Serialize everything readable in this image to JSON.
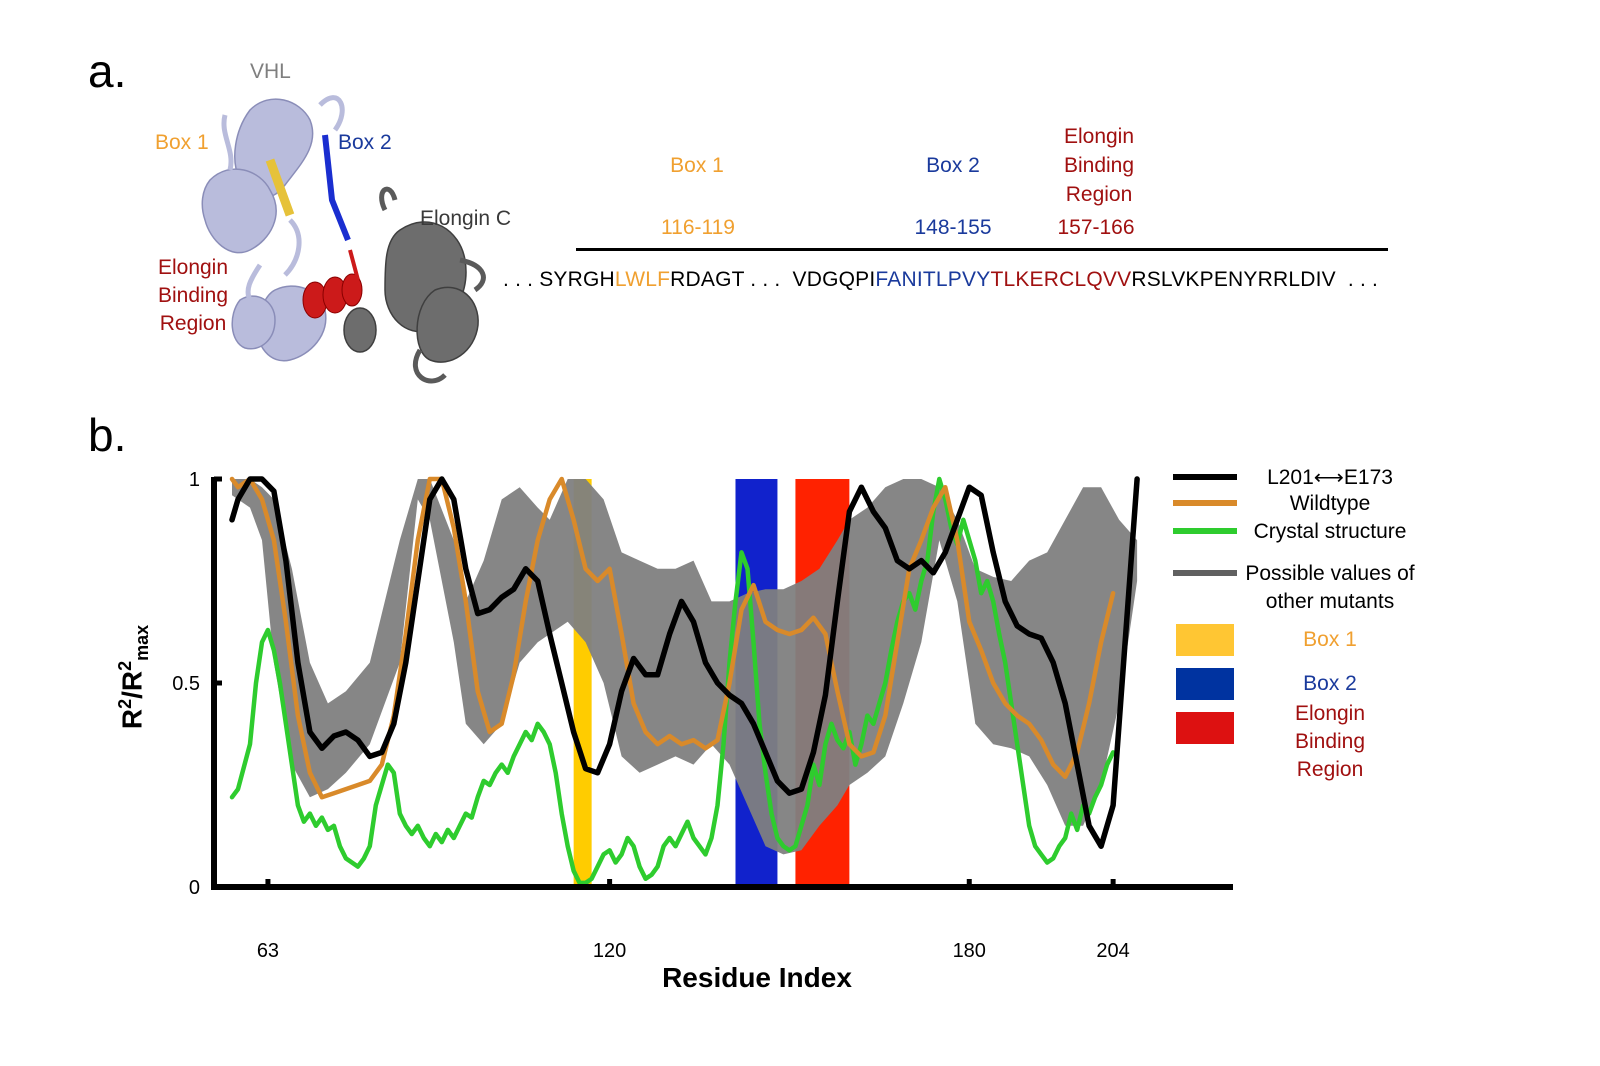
{
  "panel_a": {
    "letter": "a.",
    "structure_labels": {
      "vhl": "VHL",
      "box1": "Box 1",
      "box2": "Box 2",
      "elongin_c": "Elongin C",
      "elongin_binding": [
        "Elongin",
        "Binding",
        "Region"
      ]
    },
    "regions": [
      {
        "name_lines": [
          "Box 1"
        ],
        "range": "116-119",
        "color": "#f0a030"
      },
      {
        "name_lines": [
          "Box 2"
        ],
        "range": "148-155",
        "color": "#1a3a9c"
      },
      {
        "name_lines": [
          "Elongin",
          "Binding",
          "Region"
        ],
        "range": "157-166",
        "color": "#a01010"
      }
    ],
    "sequence": [
      {
        "text": ". . . SYRGH",
        "color": "#000000"
      },
      {
        "text": "LWLF",
        "color": "#f0a030"
      },
      {
        "text": "RDAGT . . .  VDGQPI",
        "color": "#000000"
      },
      {
        "text": "FANITLPV",
        "color": "#1a3a9c"
      },
      {
        "text": "Y",
        "color": "#000000"
      },
      {
        "text": "TLKERCLQVV",
        "color": "#a01010"
      },
      {
        "text": "RSLVKPENYRRLDIV  . . .",
        "color": "#000000"
      }
    ]
  },
  "panel_b": {
    "letter": "b."
  },
  "chart_data": {
    "type": "line",
    "xlabel": "Residue Index",
    "ylabel": "R²/R²max",
    "ylabel_parts": {
      "base": "R",
      "sup1": "2",
      "slash": "/R",
      "sup2": "2",
      "sub": "max"
    },
    "xlim": [
      54,
      224
    ],
    "ylim": [
      0,
      1
    ],
    "x_ticks": [
      63,
      120,
      180,
      204
    ],
    "y_ticks": [
      {
        "value": 0,
        "label": "0"
      },
      {
        "value": 0.5,
        "label": "0.5"
      },
      {
        "value": 1,
        "label": "1"
      }
    ],
    "grid": false,
    "legend_position": "right",
    "highlight_regions": [
      {
        "name": "Box 1",
        "from": 114,
        "to": 117,
        "color": "#ffcc00"
      },
      {
        "name": "Box 2",
        "from": 141,
        "to": 148,
        "color": "#1122cc"
      },
      {
        "name": "Elongin Binding Region",
        "from": 151,
        "to": 160,
        "color": "#ff2200"
      }
    ],
    "band": {
      "name": "Possible values of other mutants",
      "color": "#808080",
      "x": [
        57,
        60,
        62,
        64,
        67,
        70,
        73,
        76,
        80,
        85,
        88,
        90,
        94,
        96,
        99,
        102,
        105,
        108,
        110,
        113,
        116,
        119,
        122,
        125,
        128,
        131,
        134,
        137,
        140,
        143,
        146,
        149,
        152,
        155,
        158,
        160,
        163,
        166,
        169,
        172,
        175,
        178,
        181,
        184,
        187,
        190,
        193,
        196,
        199,
        202,
        205,
        208
      ],
      "upper": [
        1.0,
        1.0,
        0.98,
        0.95,
        0.78,
        0.55,
        0.45,
        0.48,
        0.55,
        0.85,
        1.0,
        1.0,
        0.85,
        0.7,
        0.8,
        0.95,
        0.98,
        0.93,
        0.9,
        1.0,
        1.0,
        0.95,
        0.82,
        0.8,
        0.78,
        0.78,
        0.8,
        0.7,
        0.7,
        0.72,
        0.73,
        0.73,
        0.75,
        0.78,
        0.85,
        0.9,
        0.93,
        0.98,
        1.0,
        1.0,
        0.98,
        0.9,
        0.78,
        0.76,
        0.75,
        0.8,
        0.82,
        0.9,
        0.98,
        0.98,
        0.9,
        0.85
      ],
      "lower": [
        0.96,
        0.93,
        0.85,
        0.55,
        0.3,
        0.22,
        0.24,
        0.28,
        0.35,
        0.55,
        0.95,
        0.9,
        0.6,
        0.4,
        0.35,
        0.4,
        0.55,
        0.6,
        0.62,
        0.65,
        0.6,
        0.5,
        0.32,
        0.28,
        0.3,
        0.32,
        0.3,
        0.35,
        0.3,
        0.2,
        0.1,
        0.08,
        0.09,
        0.15,
        0.2,
        0.25,
        0.28,
        0.32,
        0.45,
        0.6,
        0.85,
        0.7,
        0.4,
        0.35,
        0.34,
        0.32,
        0.25,
        0.15,
        0.15,
        0.25,
        0.45,
        0.75
      ]
    },
    "series": [
      {
        "name": "L201⟷E173",
        "color": "#000000",
        "x": [
          57,
          58,
          60,
          62,
          64,
          66,
          68,
          70,
          72,
          74,
          76,
          78,
          80,
          82,
          84,
          86,
          88,
          90,
          92,
          94,
          96,
          98,
          100,
          102,
          104,
          106,
          108,
          110,
          112,
          114,
          116,
          118,
          120,
          122,
          124,
          126,
          128,
          130,
          132,
          134,
          136,
          138,
          140,
          142,
          144,
          146,
          148,
          150,
          152,
          154,
          156,
          158,
          160,
          162,
          164,
          166,
          168,
          170,
          172,
          174,
          176,
          178,
          180,
          182,
          184,
          186,
          188,
          190,
          192,
          194,
          196,
          198,
          200,
          202,
          204,
          206,
          208
        ],
        "y": [
          0.9,
          0.95,
          1.0,
          1.0,
          0.97,
          0.8,
          0.55,
          0.38,
          0.34,
          0.37,
          0.38,
          0.36,
          0.32,
          0.33,
          0.4,
          0.55,
          0.75,
          0.95,
          1.0,
          0.95,
          0.78,
          0.67,
          0.68,
          0.71,
          0.73,
          0.78,
          0.75,
          0.62,
          0.5,
          0.38,
          0.29,
          0.28,
          0.35,
          0.48,
          0.56,
          0.52,
          0.52,
          0.62,
          0.7,
          0.65,
          0.55,
          0.5,
          0.47,
          0.45,
          0.4,
          0.33,
          0.26,
          0.23,
          0.24,
          0.33,
          0.47,
          0.7,
          0.92,
          0.98,
          0.92,
          0.88,
          0.8,
          0.78,
          0.8,
          0.77,
          0.82,
          0.9,
          0.98,
          0.96,
          0.82,
          0.7,
          0.64,
          0.62,
          0.61,
          0.55,
          0.45,
          0.3,
          0.15,
          0.1,
          0.2,
          0.6,
          1.0
        ]
      },
      {
        "name": "Wildtype",
        "color": "#d98a2a",
        "x": [
          57,
          58,
          60,
          62,
          64,
          66,
          68,
          70,
          72,
          74,
          76,
          78,
          80,
          82,
          84,
          86,
          88,
          90,
          92,
          94,
          96,
          98,
          100,
          102,
          104,
          106,
          108,
          110,
          112,
          114,
          116,
          118,
          120,
          122,
          124,
          126,
          128,
          130,
          132,
          134,
          136,
          138,
          140,
          142,
          144,
          146,
          148,
          150,
          152,
          154,
          156,
          158,
          160,
          162,
          164,
          166,
          168,
          170,
          172,
          174,
          176,
          178,
          180,
          182,
          184,
          186,
          188,
          190,
          192,
          194,
          196,
          198,
          200,
          202,
          204
        ],
        "y": [
          1.0,
          0.98,
          1.0,
          0.95,
          0.85,
          0.65,
          0.42,
          0.28,
          0.22,
          0.23,
          0.24,
          0.25,
          0.26,
          0.3,
          0.42,
          0.62,
          0.85,
          1.0,
          1.0,
          0.88,
          0.7,
          0.48,
          0.38,
          0.4,
          0.52,
          0.7,
          0.85,
          0.95,
          1.0,
          0.9,
          0.78,
          0.75,
          0.78,
          0.62,
          0.45,
          0.38,
          0.35,
          0.37,
          0.35,
          0.36,
          0.34,
          0.36,
          0.5,
          0.68,
          0.74,
          0.65,
          0.63,
          0.62,
          0.63,
          0.66,
          0.62,
          0.48,
          0.35,
          0.32,
          0.33,
          0.42,
          0.6,
          0.78,
          0.85,
          0.93,
          0.98,
          0.85,
          0.65,
          0.58,
          0.5,
          0.45,
          0.42,
          0.4,
          0.36,
          0.3,
          0.27,
          0.33,
          0.45,
          0.6,
          0.72
        ]
      },
      {
        "name": "Crystal structure",
        "color": "#2ecc2e",
        "x": [
          57,
          58,
          60,
          61,
          62,
          63,
          64,
          65,
          66,
          67,
          68,
          69,
          70,
          71,
          72,
          73,
          74,
          75,
          76,
          77,
          78,
          79,
          80,
          81,
          82,
          83,
          84,
          85,
          86,
          87,
          88,
          89,
          90,
          91,
          92,
          93,
          94,
          95,
          96,
          97,
          98,
          99,
          100,
          101,
          102,
          103,
          104,
          105,
          106,
          107,
          108,
          109,
          110,
          111,
          112,
          113,
          114,
          115,
          116,
          117,
          118,
          119,
          120,
          121,
          122,
          123,
          124,
          125,
          126,
          127,
          128,
          129,
          130,
          131,
          132,
          133,
          134,
          135,
          136,
          137,
          138,
          139,
          140,
          141,
          142,
          143,
          144,
          145,
          146,
          147,
          148,
          149,
          150,
          151,
          152,
          153,
          154,
          155,
          156,
          157,
          158,
          159,
          160,
          161,
          162,
          163,
          164,
          165,
          166,
          167,
          168,
          169,
          170,
          171,
          172,
          173,
          174,
          175,
          176,
          177,
          178,
          179,
          180,
          181,
          182,
          183,
          184,
          185,
          186,
          187,
          188,
          189,
          190,
          191,
          192,
          193,
          194,
          195,
          196,
          197,
          198,
          199,
          200,
          201,
          202,
          203,
          204
        ],
        "y": [
          0.22,
          0.24,
          0.35,
          0.5,
          0.6,
          0.63,
          0.58,
          0.5,
          0.4,
          0.3,
          0.2,
          0.16,
          0.18,
          0.15,
          0.17,
          0.14,
          0.15,
          0.1,
          0.07,
          0.06,
          0.05,
          0.07,
          0.1,
          0.2,
          0.25,
          0.3,
          0.28,
          0.18,
          0.15,
          0.13,
          0.15,
          0.12,
          0.1,
          0.13,
          0.11,
          0.14,
          0.12,
          0.15,
          0.18,
          0.17,
          0.22,
          0.26,
          0.25,
          0.28,
          0.3,
          0.28,
          0.32,
          0.35,
          0.38,
          0.36,
          0.4,
          0.38,
          0.35,
          0.28,
          0.18,
          0.1,
          0.04,
          0.01,
          0.01,
          0.02,
          0.05,
          0.08,
          0.09,
          0.06,
          0.08,
          0.12,
          0.1,
          0.05,
          0.02,
          0.03,
          0.05,
          0.1,
          0.12,
          0.1,
          0.13,
          0.16,
          0.12,
          0.1,
          0.08,
          0.12,
          0.2,
          0.35,
          0.55,
          0.7,
          0.82,
          0.78,
          0.6,
          0.4,
          0.28,
          0.18,
          0.12,
          0.1,
          0.09,
          0.1,
          0.15,
          0.2,
          0.3,
          0.25,
          0.35,
          0.4,
          0.36,
          0.34,
          0.38,
          0.3,
          0.35,
          0.42,
          0.4,
          0.45,
          0.5,
          0.58,
          0.65,
          0.7,
          0.72,
          0.68,
          0.75,
          0.8,
          0.92,
          1.0,
          0.95,
          0.88,
          0.84,
          0.9,
          0.85,
          0.8,
          0.72,
          0.75,
          0.7,
          0.62,
          0.55,
          0.45,
          0.35,
          0.25,
          0.15,
          0.1,
          0.08,
          0.06,
          0.07,
          0.1,
          0.12,
          0.18,
          0.14,
          0.2,
          0.18,
          0.22,
          0.25,
          0.3,
          0.33
        ]
      }
    ],
    "legend": [
      {
        "kind": "line",
        "color": "#000000",
        "lines": [
          "L201⟷E173"
        ],
        "text_color": "#000000"
      },
      {
        "kind": "line",
        "color": "#d98a2a",
        "lines": [
          "Wildtype"
        ],
        "text_color": "#000000"
      },
      {
        "kind": "line",
        "color": "#2ecc2e",
        "lines": [
          "Crystal structure"
        ],
        "text_color": "#000000"
      },
      {
        "kind": "line",
        "color": "#606060",
        "lines": [
          "Possible values of",
          "other mutants"
        ],
        "text_color": "#000000"
      },
      {
        "kind": "box",
        "color": "#ffc633",
        "lines": [
          "Box 1"
        ],
        "text_color": "#f0a030"
      },
      {
        "kind": "box",
        "color": "#0033a0",
        "lines": [
          "Box 2"
        ],
        "text_color": "#1a3a9c"
      },
      {
        "kind": "box",
        "color": "#dd1111",
        "lines": [
          "Elongin",
          "Binding",
          "Region"
        ],
        "text_color": "#a01010"
      }
    ]
  }
}
